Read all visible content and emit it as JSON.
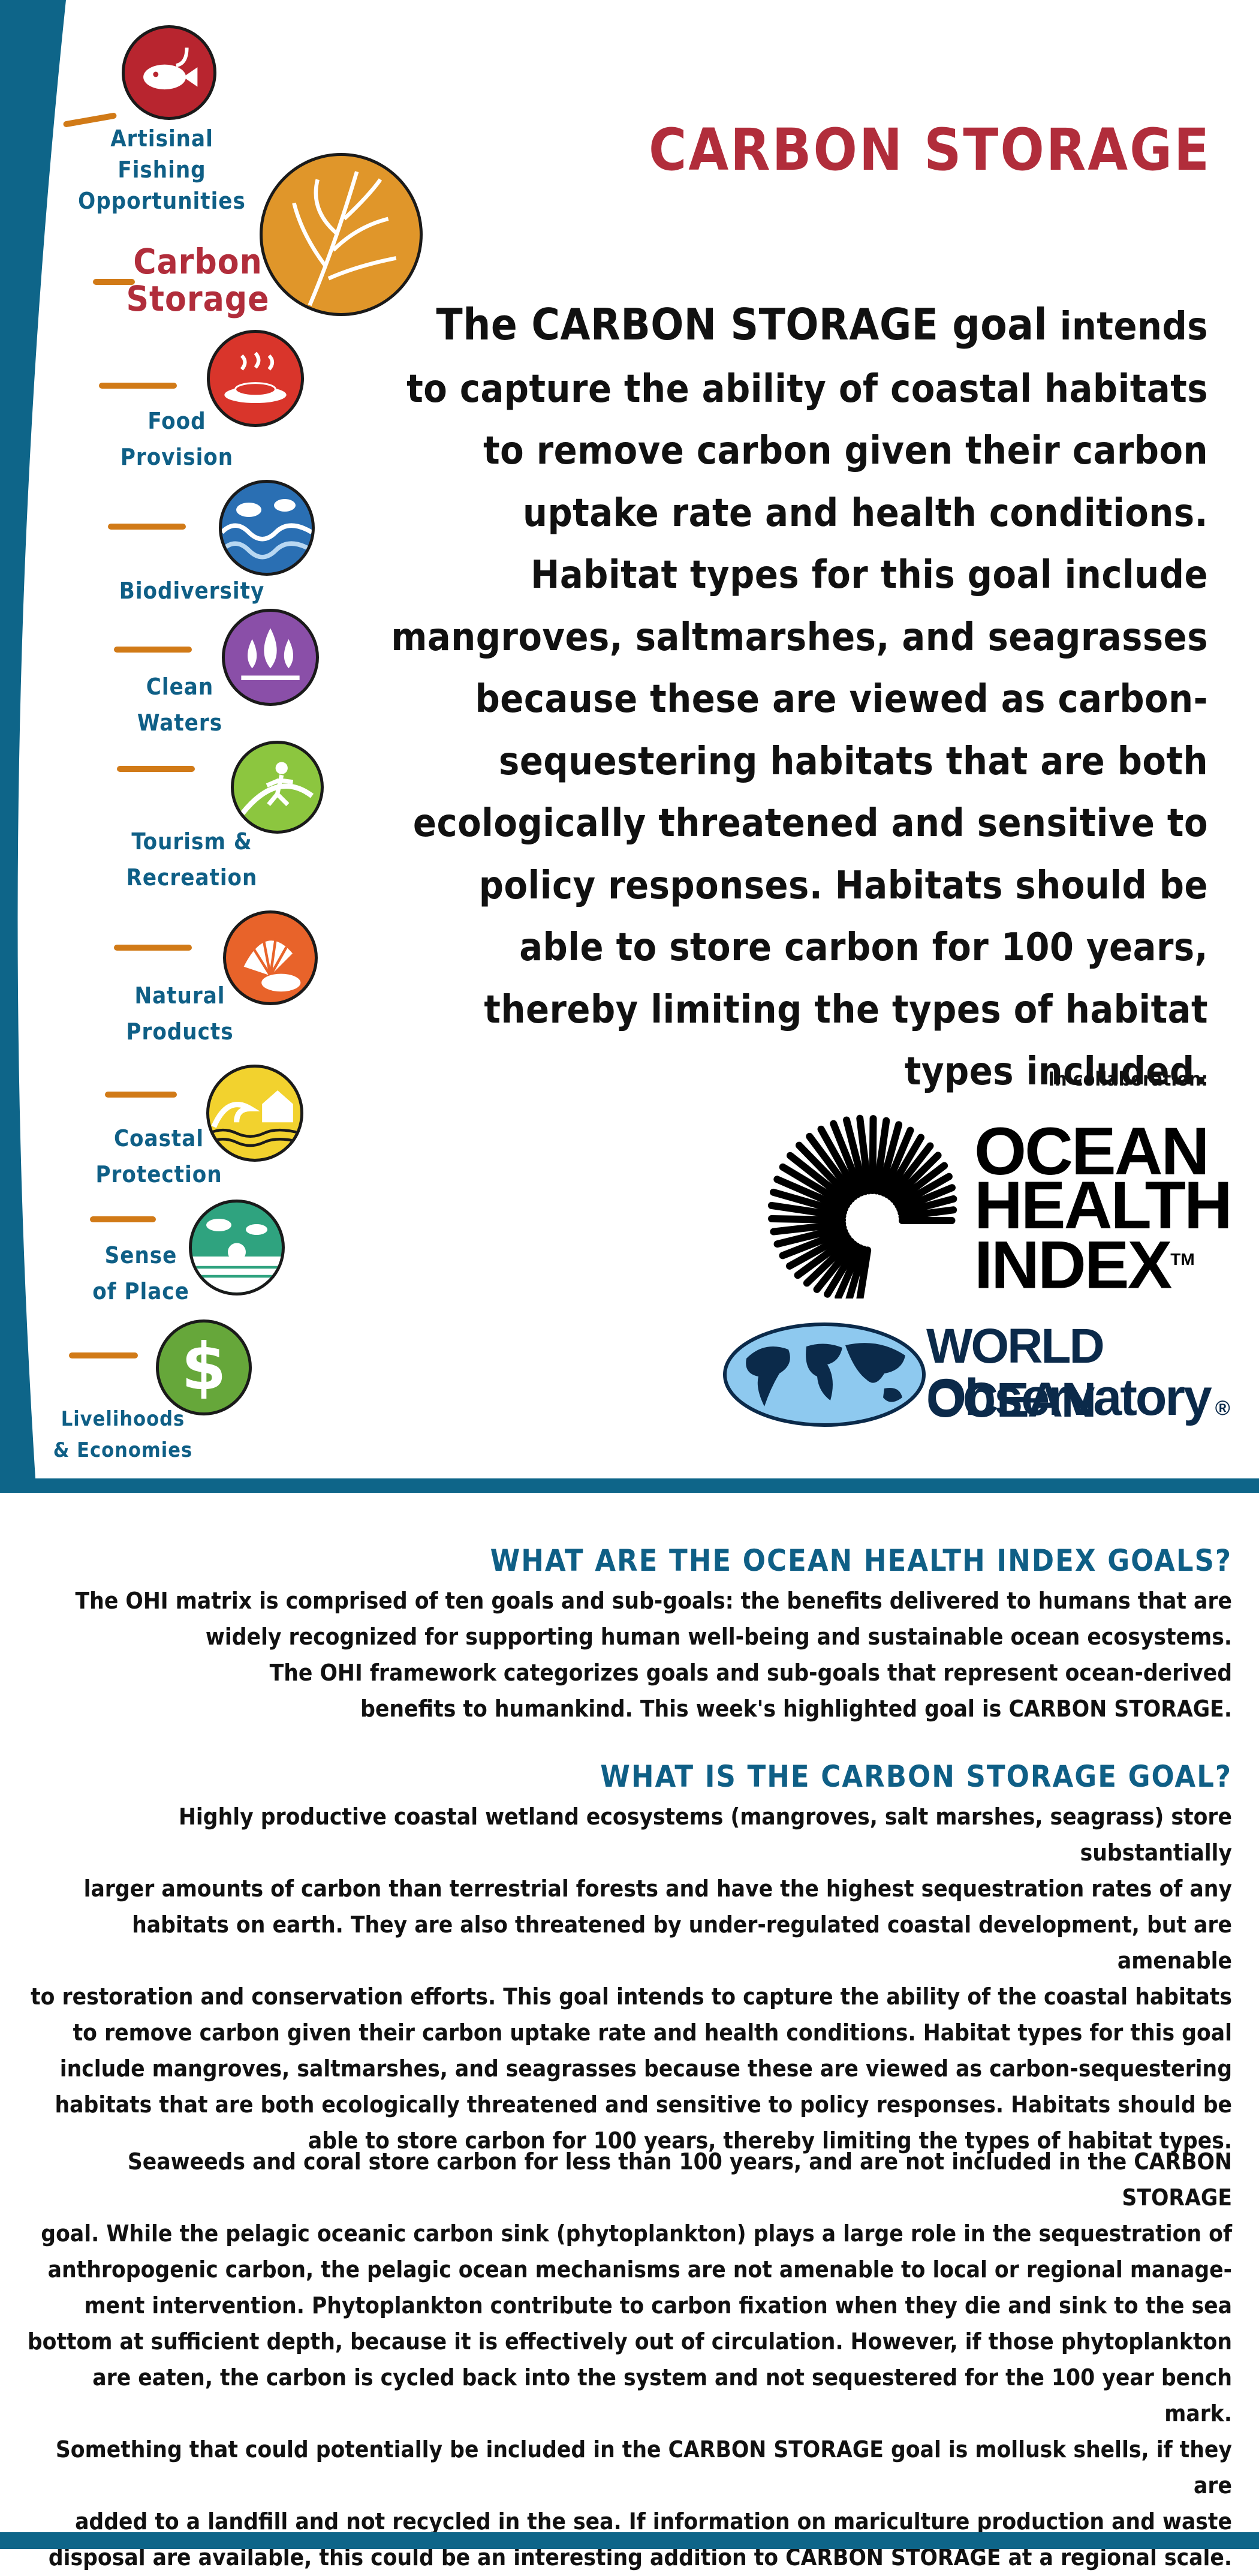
{
  "title": "CARBON STORAGE",
  "intro": {
    "lead": "The CARBON STORAGE goal",
    "rest": " intends to capture the ability of coastal habitats to remove carbon given their carbon uptake rate and health conditions. Habitat types for this goal include mangroves, saltmarshes, and seagrasses because these are viewed as carbon-sequestering habitats that are both ecologically threatened and sensitive to policy responses. Habitats should be able to store carbon for 100 years, thereby limiting the types of habitat types included."
  },
  "collaboration_label": "In collaboration:",
  "logos": {
    "ohi_line1": "OCEAN",
    "ohi_line2": "HEALTH",
    "ohi_line3": "INDEX",
    "ohi_tm": "TM",
    "woo_line1": "WORLD OCEAN",
    "woo_line2": "Observatory",
    "woo_reg": "®"
  },
  "goals": [
    {
      "label": "Artisinal\nFishing\nOpportunities",
      "icon": "fish-and-hook-icon",
      "color": "#b8252f"
    },
    {
      "label": "Carbon\nStorage",
      "icon": "kelp-icon",
      "color": "#e0962a"
    },
    {
      "label": "Food\nProvision",
      "icon": "cooked-fish-plate-icon",
      "color": "#d9352b"
    },
    {
      "label": "Biodiversity",
      "icon": "ocean-waves-icon",
      "color": "#2a6fb3"
    },
    {
      "label": "Clean\nWaters",
      "icon": "water-drops-icon",
      "color": "#8a4fa8"
    },
    {
      "label": "Tourism &\nRecreation",
      "icon": "surfer-icon",
      "color": "#8cc63f"
    },
    {
      "label": "Natural\nProducts",
      "icon": "seashells-icon",
      "color": "#e8632a"
    },
    {
      "label": "Coastal\nProtection",
      "icon": "house-and-wave-icon",
      "color": "#f2d22e"
    },
    {
      "label": "Sense\nof Place",
      "icon": "island-sunrise-icon",
      "color": "#2fa37f"
    },
    {
      "label": "Livelihoods\n& Economies",
      "icon": "dollar-sign-icon",
      "color": "#66a73a"
    }
  ],
  "section1": {
    "heading": "WHAT ARE THE OCEAN HEALTH INDEX GOALS?",
    "lines": [
      "The OHI matrix is comprised of ten goals and sub-goals: the benefits delivered to humans that are",
      "widely recognized for supporting human well-being and sustainable ocean ecosystems.",
      "The OHI framework categorizes goals and sub-goals that represent ocean-derived",
      "benefits to humankind. This week's highlighted goal is CARBON STORAGE."
    ]
  },
  "section2": {
    "heading": "WHAT IS THE CARBON STORAGE GOAL?",
    "lines": [
      "Highly productive coastal wetland ecosystems (mangroves, salt marshes, seagrass) store substantially",
      "larger amounts of carbon than terrestrial forests and have the highest sequestration rates of any",
      "habitats on earth. They are also threatened by under-regulated coastal development, but are amenable",
      "to restoration and conservation efforts. This goal intends to capture the ability of the coastal habitats",
      "to remove carbon given their carbon uptake rate and health conditions. Habitat types for this goal",
      "include mangroves, saltmarshes, and seagrasses because these are viewed as carbon-sequestering",
      "habitats that are both ecologically threatened and sensitive to policy responses. Habitats should be",
      "able to store carbon for 100 years, thereby limiting the types of habitat types."
    ]
  },
  "section3": {
    "lines": [
      "Seaweeds and coral store carbon for less than 100 years, and are not included in the CARBON STORAGE",
      "goal. While the pelagic oceanic carbon sink (phytoplankton) plays a large role in the sequestration of",
      "anthropogenic carbon, the pelagic ocean mechanisms are not amenable to local or regional manage-",
      "ment intervention. Phytoplankton contribute to carbon fixation when they die and sink to the sea",
      "bottom at sufficient depth, because it is effectively out of circulation. However, if those phytoplankton",
      "are eaten, the carbon is cycled back into the system and not sequestered for the 100 year bench mark.",
      "Something that could potentially be included in the CARBON STORAGE goal is mollusk shells, if they are",
      "added to a landfill and not recycled in the sea. If information on mariculture production and waste",
      "disposal are available, this could be an interesting addition to CARBON STORAGE at a regional scale."
    ]
  }
}
